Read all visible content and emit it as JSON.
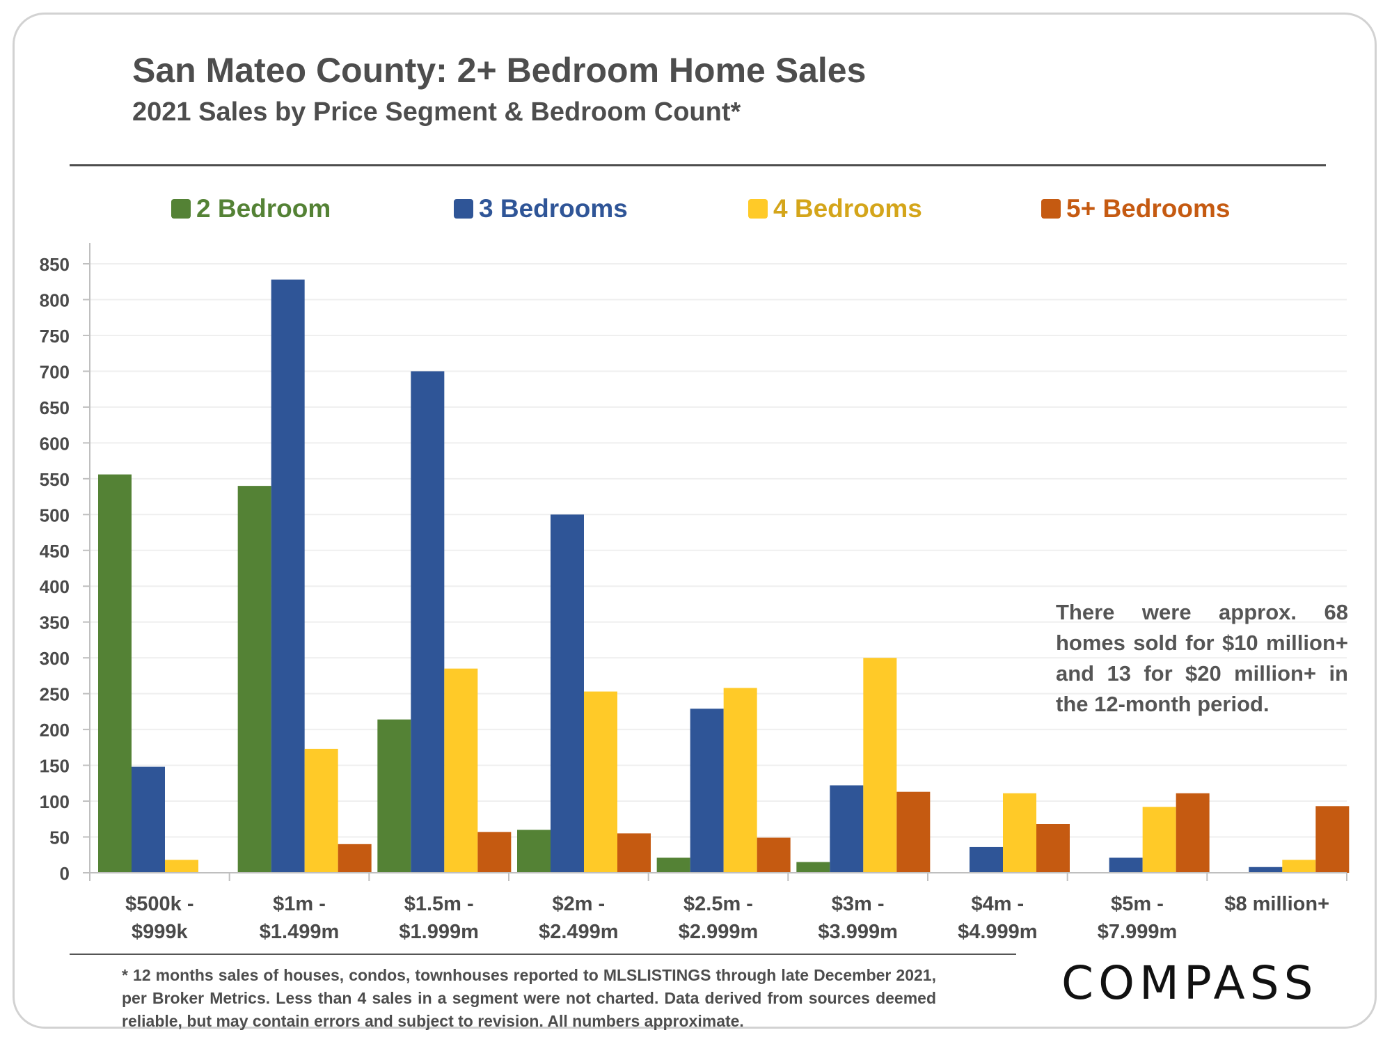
{
  "title": "San Mateo County: 2+ Bedroom Home Sales",
  "subtitle": "2021 Sales by Price Segment & Bedroom Count*",
  "annotation": "There were approx. 68 homes sold for $10 million+ and 13 for $20 million+ in the 12-month period.",
  "footnote": "* 12 months sales of houses, condos, townhouses reported to MLSLISTINGS through late December 2021, per Broker Metrics. Less than 4 sales in a segment were not charted. Data derived from sources deemed reliable, but may contain errors and subject to revision. All numbers approximate.",
  "logo": "COMPASS",
  "chart_data": {
    "type": "bar",
    "title": "San Mateo County: 2+ Bedroom Home Sales",
    "subtitle": "2021 Sales by Price Segment & Bedroom Count*",
    "categories": [
      [
        "$500k -",
        "$999k"
      ],
      [
        "$1m -",
        "$1.499m"
      ],
      [
        "$1.5m -",
        "$1.999m"
      ],
      [
        "$2m -",
        "$2.499m"
      ],
      [
        "$2.5m -",
        "$2.999m"
      ],
      [
        "$3m -",
        "$3.999m"
      ],
      [
        "$4m -",
        "$4.999m"
      ],
      [
        "$5m -",
        "$7.999m"
      ],
      [
        "$8 million+"
      ]
    ],
    "series": [
      {
        "name": "2 Bedroom",
        "color": "#548235",
        "values": [
          556,
          540,
          214,
          60,
          21,
          15,
          null,
          null,
          null
        ]
      },
      {
        "name": "3 Bedrooms",
        "color": "#2f5597",
        "values": [
          148,
          828,
          700,
          500,
          229,
          122,
          36,
          21,
          8
        ]
      },
      {
        "name": "4 Bedrooms",
        "color": "#ffca28",
        "values": [
          18,
          173,
          285,
          253,
          258,
          300,
          111,
          92,
          18
        ]
      },
      {
        "name": "5+ Bedrooms",
        "color": "#c55a11",
        "values": [
          null,
          40,
          57,
          55,
          49,
          113,
          68,
          111,
          93
        ]
      }
    ],
    "ylim": [
      0,
      850
    ],
    "yticks": [
      0,
      50,
      100,
      150,
      200,
      250,
      300,
      350,
      400,
      450,
      500,
      550,
      600,
      650,
      700,
      750,
      800,
      850
    ],
    "xlabel": "",
    "ylabel": "",
    "grid": true,
    "legend": "top"
  }
}
